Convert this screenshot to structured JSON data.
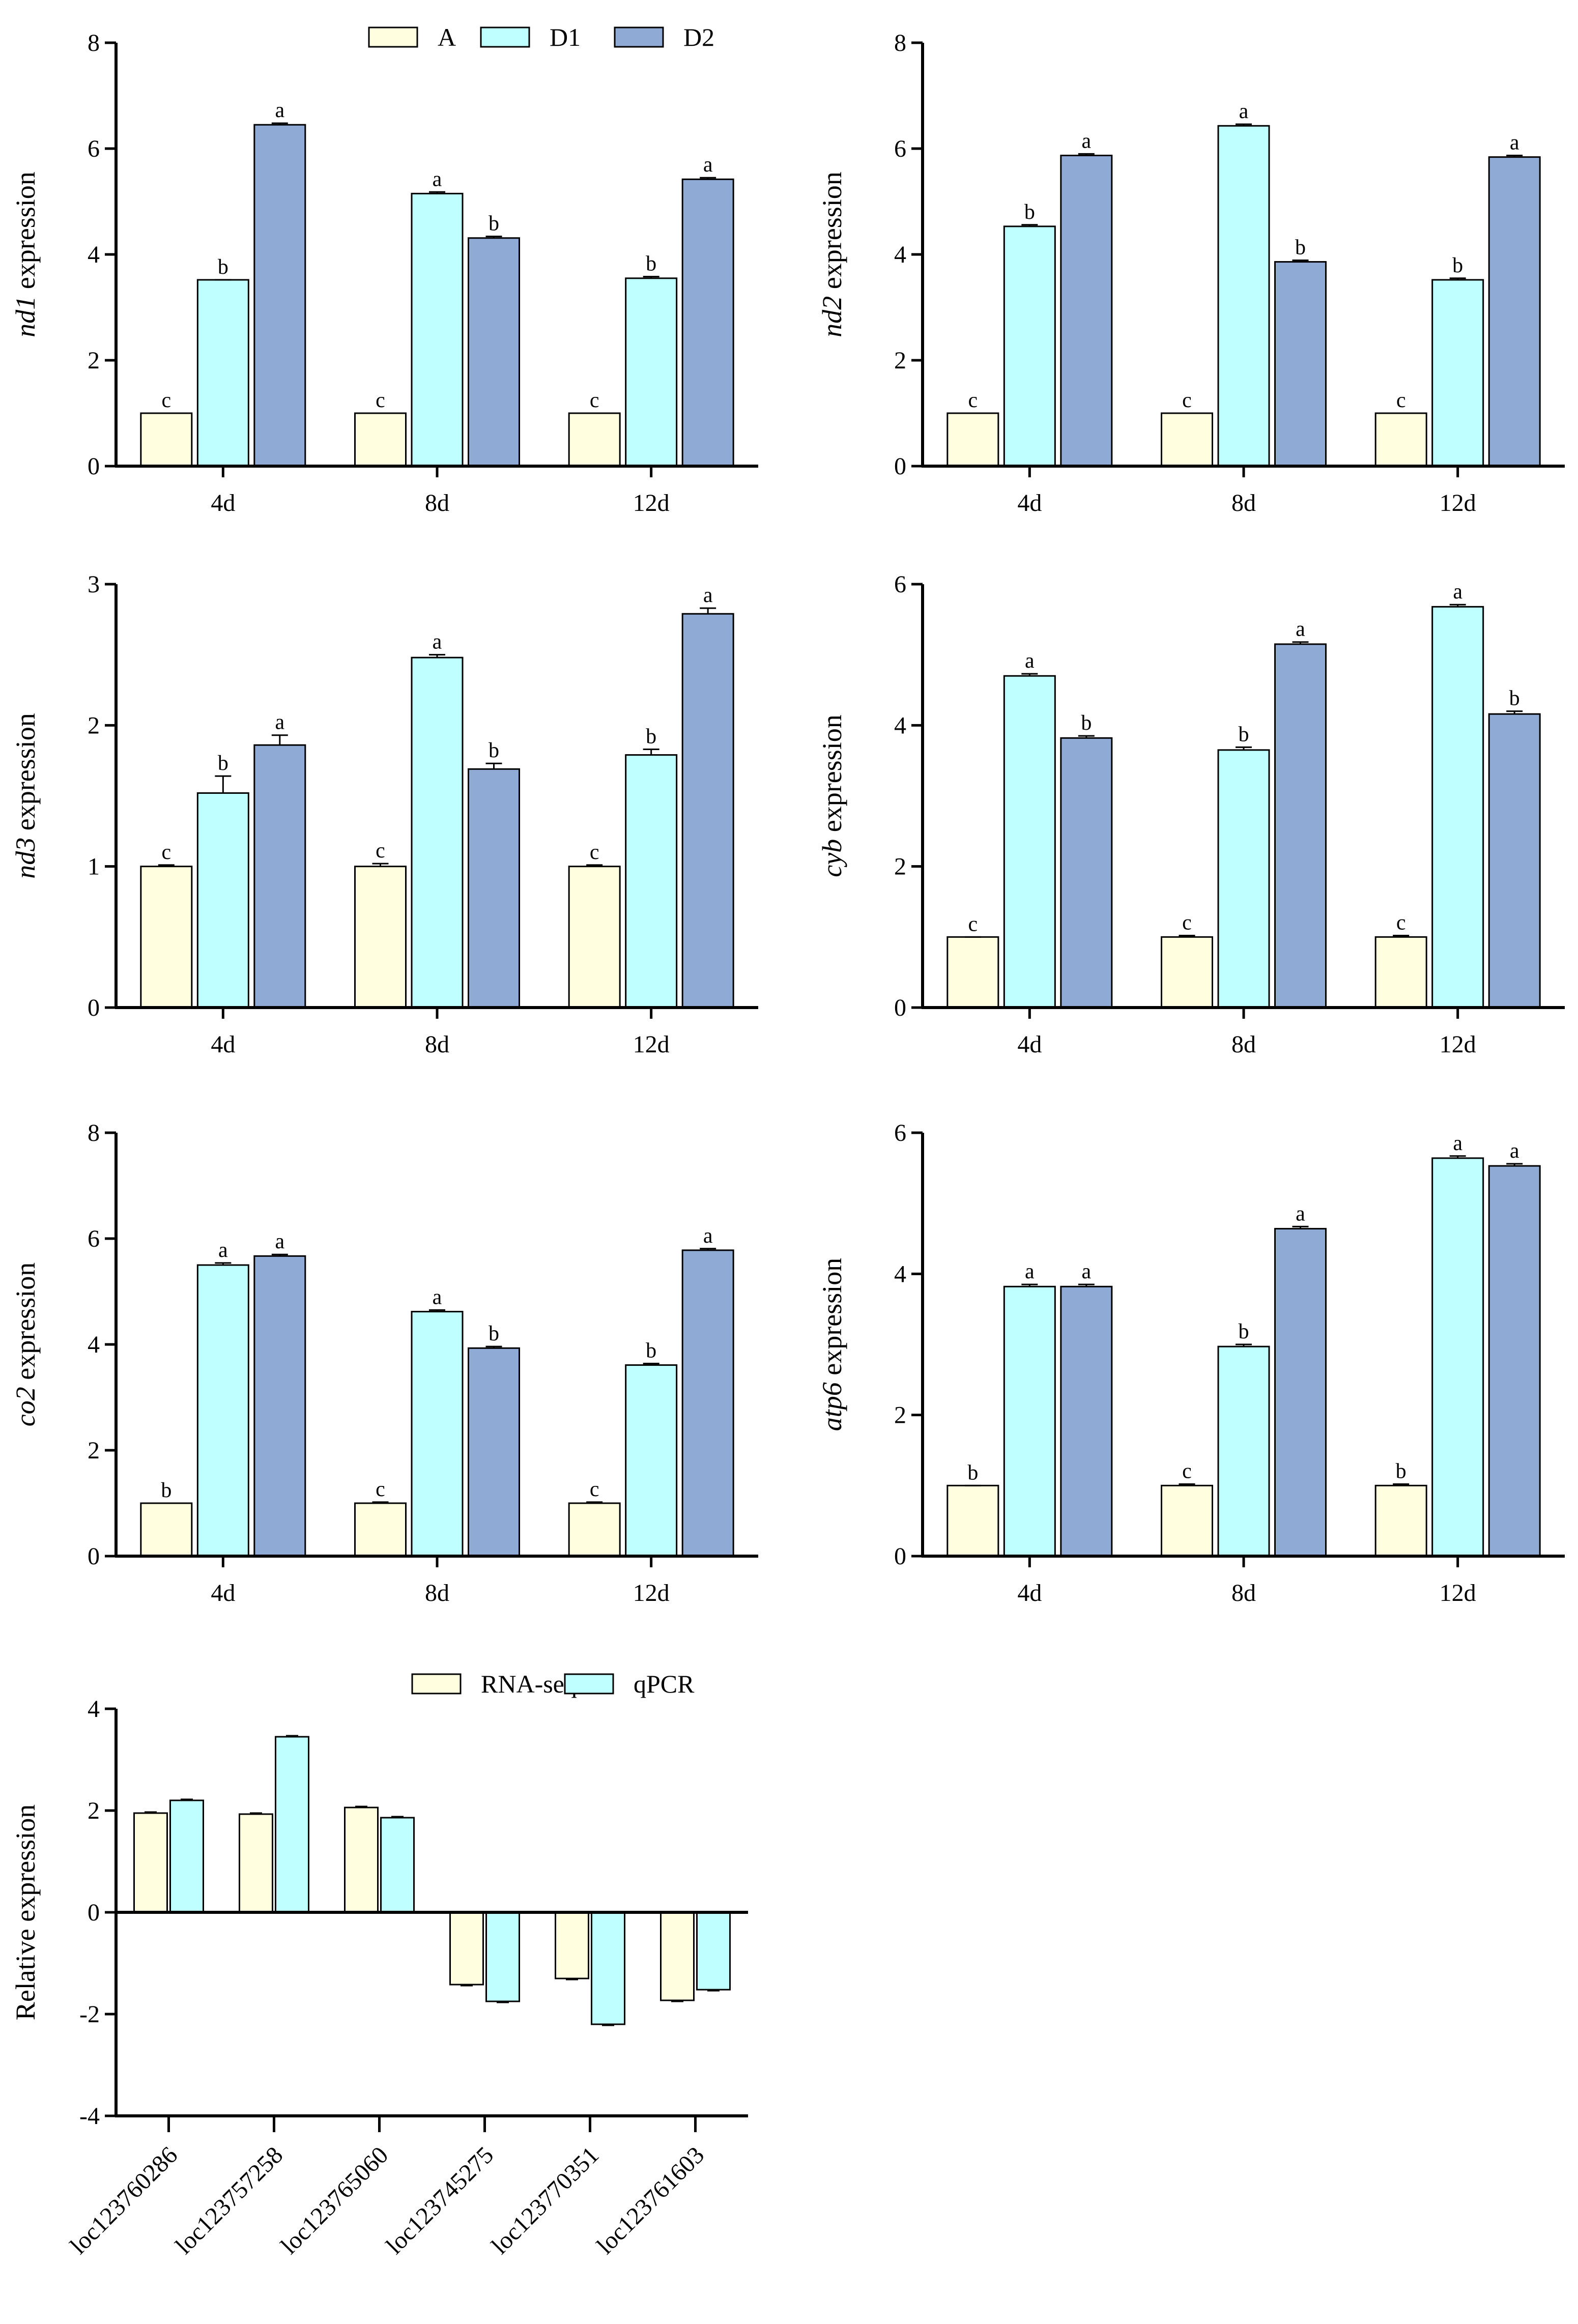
{
  "figure": {
    "gene_panels_xlabels": [
      "4d",
      "8d",
      "12d"
    ]
  },
  "legend": {
    "entries": [
      "A",
      "D1",
      "D2"
    ]
  },
  "chart_data": [
    {
      "type": "bar",
      "gene": "nd1",
      "ylabel_suffix": " expression",
      "categories": [
        "4d",
        "8d",
        "12d"
      ],
      "ylim": [
        0,
        8
      ],
      "yticks": [
        "0",
        "2",
        "4",
        "6",
        "8"
      ],
      "series": [
        {
          "name": "A",
          "color": "#FFFFE0",
          "values": [
            1.0,
            1.0,
            1.0
          ],
          "errors": [
            0,
            0,
            0
          ],
          "letters": [
            "c",
            "c",
            "c"
          ]
        },
        {
          "name": "D1",
          "color": "#BFFFFF",
          "values": [
            3.52,
            5.15,
            3.55
          ],
          "errors": [
            0,
            0.03,
            0.03
          ],
          "letters": [
            "b",
            "a",
            "b"
          ]
        },
        {
          "name": "D2",
          "color": "#8EAAD5",
          "values": [
            6.45,
            4.31,
            5.42
          ],
          "errors": [
            0.03,
            0.03,
            0.03
          ],
          "letters": [
            "a",
            "b",
            "a"
          ]
        }
      ]
    },
    {
      "type": "bar",
      "gene": "nd2",
      "ylabel_suffix": " expression",
      "categories": [
        "4d",
        "8d",
        "12d"
      ],
      "ylim": [
        0,
        8
      ],
      "yticks": [
        "0",
        "2",
        "4",
        "6",
        "8"
      ],
      "series": [
        {
          "name": "A",
          "color": "#FFFFE0",
          "values": [
            1.0,
            1.0,
            1.0
          ],
          "errors": [
            0,
            0,
            0
          ],
          "letters": [
            "c",
            "c",
            "c"
          ]
        },
        {
          "name": "D1",
          "color": "#BFFFFF",
          "values": [
            4.53,
            6.43,
            3.52
          ],
          "errors": [
            0.03,
            0.03,
            0.03
          ],
          "letters": [
            "b",
            "a",
            "b"
          ]
        },
        {
          "name": "D2",
          "color": "#8EAAD5",
          "values": [
            5.87,
            3.86,
            5.84
          ],
          "errors": [
            0.03,
            0.03,
            0.03
          ],
          "letters": [
            "a",
            "b",
            "a"
          ]
        }
      ]
    },
    {
      "type": "bar",
      "gene": "nd3",
      "ylabel_suffix": " expression",
      "categories": [
        "4d",
        "8d",
        "12d"
      ],
      "ylim": [
        0,
        3
      ],
      "yticks": [
        "0",
        "1",
        "2",
        "3"
      ],
      "series": [
        {
          "name": "A",
          "color": "#FFFFE0",
          "values": [
            1.0,
            1.0,
            1.0
          ],
          "errors": [
            0.01,
            0.02,
            0.01
          ],
          "letters": [
            "c",
            "c",
            "c"
          ]
        },
        {
          "name": "D1",
          "color": "#BFFFFF",
          "values": [
            1.52,
            2.48,
            1.79
          ],
          "errors": [
            0.12,
            0.02,
            0.04
          ],
          "letters": [
            "b",
            "a",
            "b"
          ]
        },
        {
          "name": "D2",
          "color": "#8EAAD5",
          "values": [
            1.86,
            1.69,
            2.79
          ],
          "errors": [
            0.07,
            0.04,
            0.04
          ],
          "letters": [
            "a",
            "b",
            "a"
          ]
        }
      ]
    },
    {
      "type": "bar",
      "gene": "cyb",
      "ylabel_suffix": " expression",
      "categories": [
        "4d",
        "8d",
        "12d"
      ],
      "ylim": [
        0,
        6
      ],
      "yticks": [
        "0",
        "2",
        "4",
        "6"
      ],
      "series": [
        {
          "name": "A",
          "color": "#FFFFE0",
          "values": [
            1.0,
            1.0,
            1.0
          ],
          "errors": [
            0,
            0.02,
            0.02
          ],
          "letters": [
            "c",
            "c",
            "c"
          ]
        },
        {
          "name": "D1",
          "color": "#BFFFFF",
          "values": [
            4.7,
            3.65,
            5.68
          ],
          "errors": [
            0.03,
            0.04,
            0.03
          ],
          "letters": [
            "a",
            "b",
            "a"
          ]
        },
        {
          "name": "D2",
          "color": "#8EAAD5",
          "values": [
            3.82,
            5.15,
            4.16
          ],
          "errors": [
            0.03,
            0.03,
            0.04
          ],
          "letters": [
            "b",
            "a",
            "b"
          ]
        }
      ]
    },
    {
      "type": "bar",
      "gene": "co2",
      "ylabel_suffix": " expression",
      "categories": [
        "4d",
        "8d",
        "12d"
      ],
      "ylim": [
        0,
        8
      ],
      "yticks": [
        "0",
        "2",
        "4",
        "6",
        "8"
      ],
      "series": [
        {
          "name": "A",
          "color": "#FFFFE0",
          "values": [
            1.0,
            1.0,
            1.0
          ],
          "errors": [
            0,
            0.02,
            0.02
          ],
          "letters": [
            "b",
            "c",
            "c"
          ]
        },
        {
          "name": "D1",
          "color": "#BFFFFF",
          "values": [
            5.5,
            4.62,
            3.61
          ],
          "errors": [
            0.04,
            0.03,
            0.03
          ],
          "letters": [
            "a",
            "a",
            "b"
          ]
        },
        {
          "name": "D2",
          "color": "#8EAAD5",
          "values": [
            5.67,
            3.93,
            5.78
          ],
          "errors": [
            0.03,
            0.03,
            0.03
          ],
          "letters": [
            "a",
            "b",
            "a"
          ]
        }
      ]
    },
    {
      "type": "bar",
      "gene": "atp6",
      "ylabel_suffix": " expression",
      "categories": [
        "4d",
        "8d",
        "12d"
      ],
      "ylim": [
        0,
        6
      ],
      "yticks": [
        "0",
        "2",
        "4",
        "6"
      ],
      "series": [
        {
          "name": "A",
          "color": "#FFFFE0",
          "values": [
            1.0,
            1.0,
            1.0
          ],
          "errors": [
            0,
            0.02,
            0.02
          ],
          "letters": [
            "b",
            "c",
            "b"
          ]
        },
        {
          "name": "D1",
          "color": "#BFFFFF",
          "values": [
            3.82,
            2.97,
            5.64
          ],
          "errors": [
            0.03,
            0.03,
            0.03
          ],
          "letters": [
            "a",
            "b",
            "a"
          ]
        },
        {
          "name": "D2",
          "color": "#8EAAD5",
          "values": [
            3.82,
            4.64,
            5.53
          ],
          "errors": [
            0.03,
            0.03,
            0.03
          ],
          "letters": [
            "a",
            "a",
            "a"
          ]
        }
      ]
    },
    {
      "type": "bar",
      "ylabel": "Relative expression",
      "categories": [
        "loc123760286",
        "loc123757258",
        "loc123765060",
        "loc123745275",
        "loc123770351",
        "loc123761603"
      ],
      "ylim": [
        -4,
        4
      ],
      "yticks": [
        "-4",
        "-2",
        "0",
        "2",
        "4"
      ],
      "series": [
        {
          "name": "RNA-seq",
          "color": "#FFFFE0",
          "values": [
            1.95,
            1.93,
            2.06,
            -1.42,
            -1.3,
            -1.73
          ],
          "errors": [
            0.02,
            0.02,
            0.02,
            0.02,
            0.02,
            0.02
          ]
        },
        {
          "name": "qPCR",
          "color": "#BFFFFF",
          "values": [
            2.2,
            3.45,
            1.86,
            -1.75,
            -2.2,
            -1.52
          ],
          "errors": [
            0.02,
            0.02,
            0.02,
            0.02,
            0.02,
            0.02
          ]
        }
      ]
    }
  ]
}
